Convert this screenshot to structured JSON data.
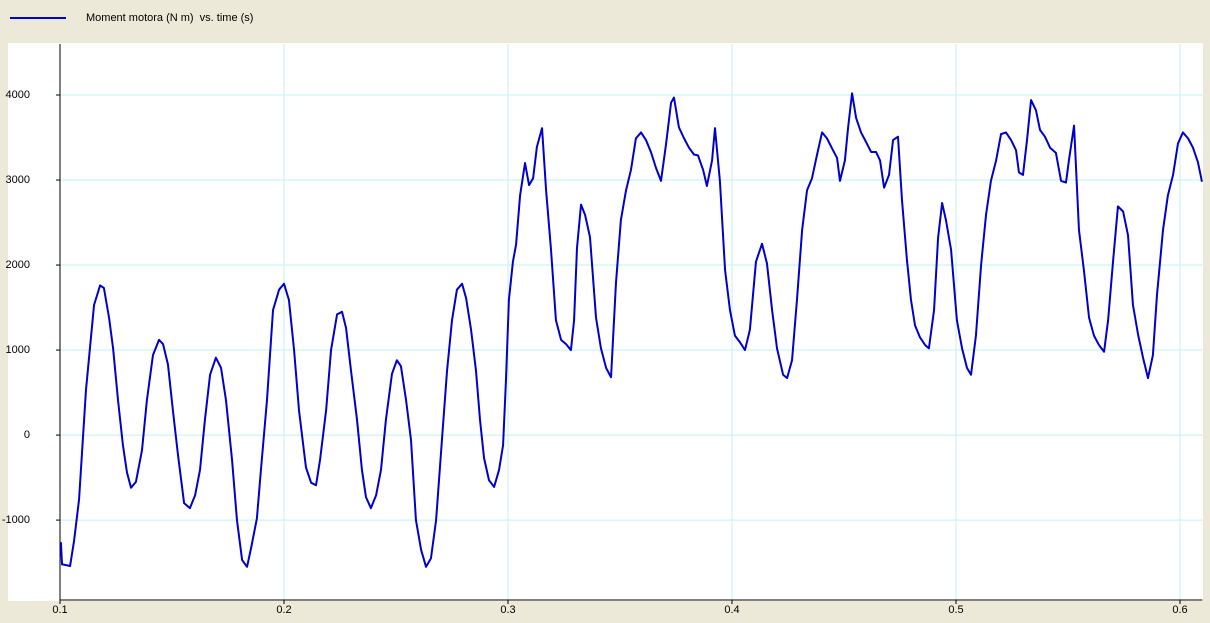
{
  "chart_data": {
    "type": "line",
    "x": [
      0.1004,
      0.1009,
      0.1045,
      0.1063,
      0.1085,
      0.1116,
      0.1152,
      0.1179,
      0.1196,
      0.1219,
      0.1237,
      0.1259,
      0.1281,
      0.1299,
      0.1317,
      0.1339,
      0.1366,
      0.1388,
      0.1415,
      0.1442,
      0.146,
      0.1482,
      0.1504,
      0.1527,
      0.1554,
      0.158,
      0.1603,
      0.1625,
      0.1647,
      0.167,
      0.1696,
      0.1719,
      0.1741,
      0.1768,
      0.179,
      0.1813,
      0.1835,
      0.1853,
      0.1879,
      0.1897,
      0.1924,
      0.1951,
      0.1978,
      0.2,
      0.2022,
      0.2045,
      0.2067,
      0.2098,
      0.2121,
      0.2143,
      0.2161,
      0.2188,
      0.221,
      0.2237,
      0.2259,
      0.2277,
      0.2299,
      0.2326,
      0.2348,
      0.2366,
      0.2388,
      0.2411,
      0.2433,
      0.2455,
      0.2482,
      0.2504,
      0.2522,
      0.2545,
      0.2567,
      0.2589,
      0.2612,
      0.2634,
      0.2656,
      0.2679,
      0.2705,
      0.2728,
      0.275,
      0.2772,
      0.2795,
      0.2813,
      0.2835,
      0.2857,
      0.2875,
      0.2893,
      0.2915,
      0.2938,
      0.296,
      0.2978,
      0.2991,
      0.3004,
      0.3022,
      0.3036,
      0.3054,
      0.3076,
      0.3094,
      0.3112,
      0.3129,
      0.3152,
      0.317,
      0.3192,
      0.3214,
      0.3237,
      0.3259,
      0.3281,
      0.3295,
      0.3308,
      0.3326,
      0.3344,
      0.3366,
      0.3393,
      0.3415,
      0.3438,
      0.346,
      0.3482,
      0.3504,
      0.3527,
      0.3549,
      0.3571,
      0.3594,
      0.3616,
      0.3638,
      0.3661,
      0.3683,
      0.3705,
      0.3728,
      0.3741,
      0.3763,
      0.3786,
      0.3808,
      0.383,
      0.3848,
      0.3871,
      0.3888,
      0.3911,
      0.3924,
      0.3946,
      0.3969,
      0.3991,
      0.4013,
      0.4036,
      0.4058,
      0.408,
      0.4107,
      0.4134,
      0.4156,
      0.4179,
      0.4201,
      0.4228,
      0.4246,
      0.4268,
      0.429,
      0.4313,
      0.4335,
      0.4357,
      0.4379,
      0.4402,
      0.4424,
      0.4451,
      0.4469,
      0.4482,
      0.4504,
      0.4518,
      0.4536,
      0.4554,
      0.4576,
      0.4598,
      0.4621,
      0.4643,
      0.4661,
      0.4679,
      0.4701,
      0.4719,
      0.4741,
      0.4759,
      0.4781,
      0.4799,
      0.4817,
      0.4839,
      0.4862,
      0.4879,
      0.4902,
      0.492,
      0.4938,
      0.4955,
      0.4978,
      0.5004,
      0.5027,
      0.5049,
      0.5067,
      0.5089,
      0.5112,
      0.5134,
      0.5156,
      0.5179,
      0.5201,
      0.5223,
      0.5246,
      0.5268,
      0.5281,
      0.5299,
      0.5317,
      0.5335,
      0.5357,
      0.5375,
      0.5397,
      0.542,
      0.5446,
      0.5469,
      0.5491,
      0.5504,
      0.5527,
      0.5549,
      0.5571,
      0.5594,
      0.5616,
      0.5638,
      0.5661,
      0.5679,
      0.5701,
      0.5723,
      0.5746,
      0.5768,
      0.579,
      0.5813,
      0.5835,
      0.5857,
      0.5879,
      0.5897,
      0.5924,
      0.5946,
      0.5969,
      0.5991,
      0.6013,
      0.6036,
      0.6058,
      0.608,
      0.6098
    ],
    "series": [
      {
        "name": "Moment motora (N m)  vs. time (s)",
        "color": "#0000cc",
        "values": [
          -1260,
          -1520,
          -1540,
          -1240,
          -760,
          530,
          1530,
          1760,
          1730,
          1380,
          1020,
          410,
          -120,
          -440,
          -620,
          -550,
          -180,
          410,
          940,
          1120,
          1070,
          830,
          290,
          -240,
          -800,
          -860,
          -710,
          -410,
          180,
          710,
          910,
          790,
          410,
          -290,
          -1000,
          -1470,
          -1550,
          -1330,
          -980,
          -410,
          410,
          1470,
          1710,
          1780,
          1590,
          1000,
          290,
          -380,
          -560,
          -590,
          -290,
          290,
          1000,
          1420,
          1450,
          1260,
          760,
          180,
          -410,
          -730,
          -860,
          -710,
          -410,
          180,
          720,
          880,
          810,
          410,
          -60,
          -1000,
          -1350,
          -1550,
          -1450,
          -1000,
          -60,
          760,
          1350,
          1710,
          1780,
          1610,
          1240,
          760,
          180,
          -270,
          -530,
          -610,
          -410,
          -120,
          650,
          1590,
          2040,
          2240,
          2820,
          3200,
          2940,
          3020,
          3390,
          3610,
          2880,
          2180,
          1350,
          1120,
          1070,
          1000,
          1350,
          2200,
          2710,
          2590,
          2330,
          1380,
          1020,
          790,
          680,
          1790,
          2530,
          2880,
          3120,
          3490,
          3560,
          3470,
          3330,
          3140,
          2990,
          3410,
          3910,
          3970,
          3620,
          3490,
          3380,
          3300,
          3290,
          3120,
          2930,
          3230,
          3610,
          2990,
          1940,
          1470,
          1170,
          1090,
          1000,
          1240,
          2040,
          2250,
          2020,
          1470,
          1020,
          710,
          670,
          880,
          1590,
          2410,
          2880,
          3020,
          3290,
          3560,
          3490,
          3350,
          3260,
          2990,
          3230,
          3610,
          4020,
          3730,
          3560,
          3450,
          3330,
          3330,
          3230,
          2910,
          3060,
          3470,
          3510,
          2760,
          2060,
          1590,
          1290,
          1150,
          1060,
          1020,
          1470,
          2320,
          2730,
          2530,
          2180,
          1350,
          1020,
          790,
          710,
          1170,
          2000,
          2590,
          2990,
          3230,
          3540,
          3560,
          3470,
          3350,
          3090,
          3060,
          3470,
          3940,
          3820,
          3590,
          3510,
          3380,
          3320,
          2990,
          2970,
          3230,
          3640,
          2410,
          1940,
          1380,
          1170,
          1060,
          980,
          1350,
          2040,
          2690,
          2630,
          2350,
          1530,
          1180,
          910,
          670,
          940,
          1640,
          2410,
          2820,
          3060,
          3430,
          3560,
          3490,
          3380,
          3210,
          2980
        ]
      }
    ],
    "xlim": [
      0.1,
      0.61
    ],
    "xticks": [
      0.1,
      0.2,
      0.3,
      0.4,
      0.5,
      0.6
    ],
    "ylim": [
      -1940,
      4600
    ],
    "yticks": [
      -1000,
      0,
      1000,
      2000,
      3000,
      4000
    ],
    "grid": true,
    "legend": "top-left"
  }
}
